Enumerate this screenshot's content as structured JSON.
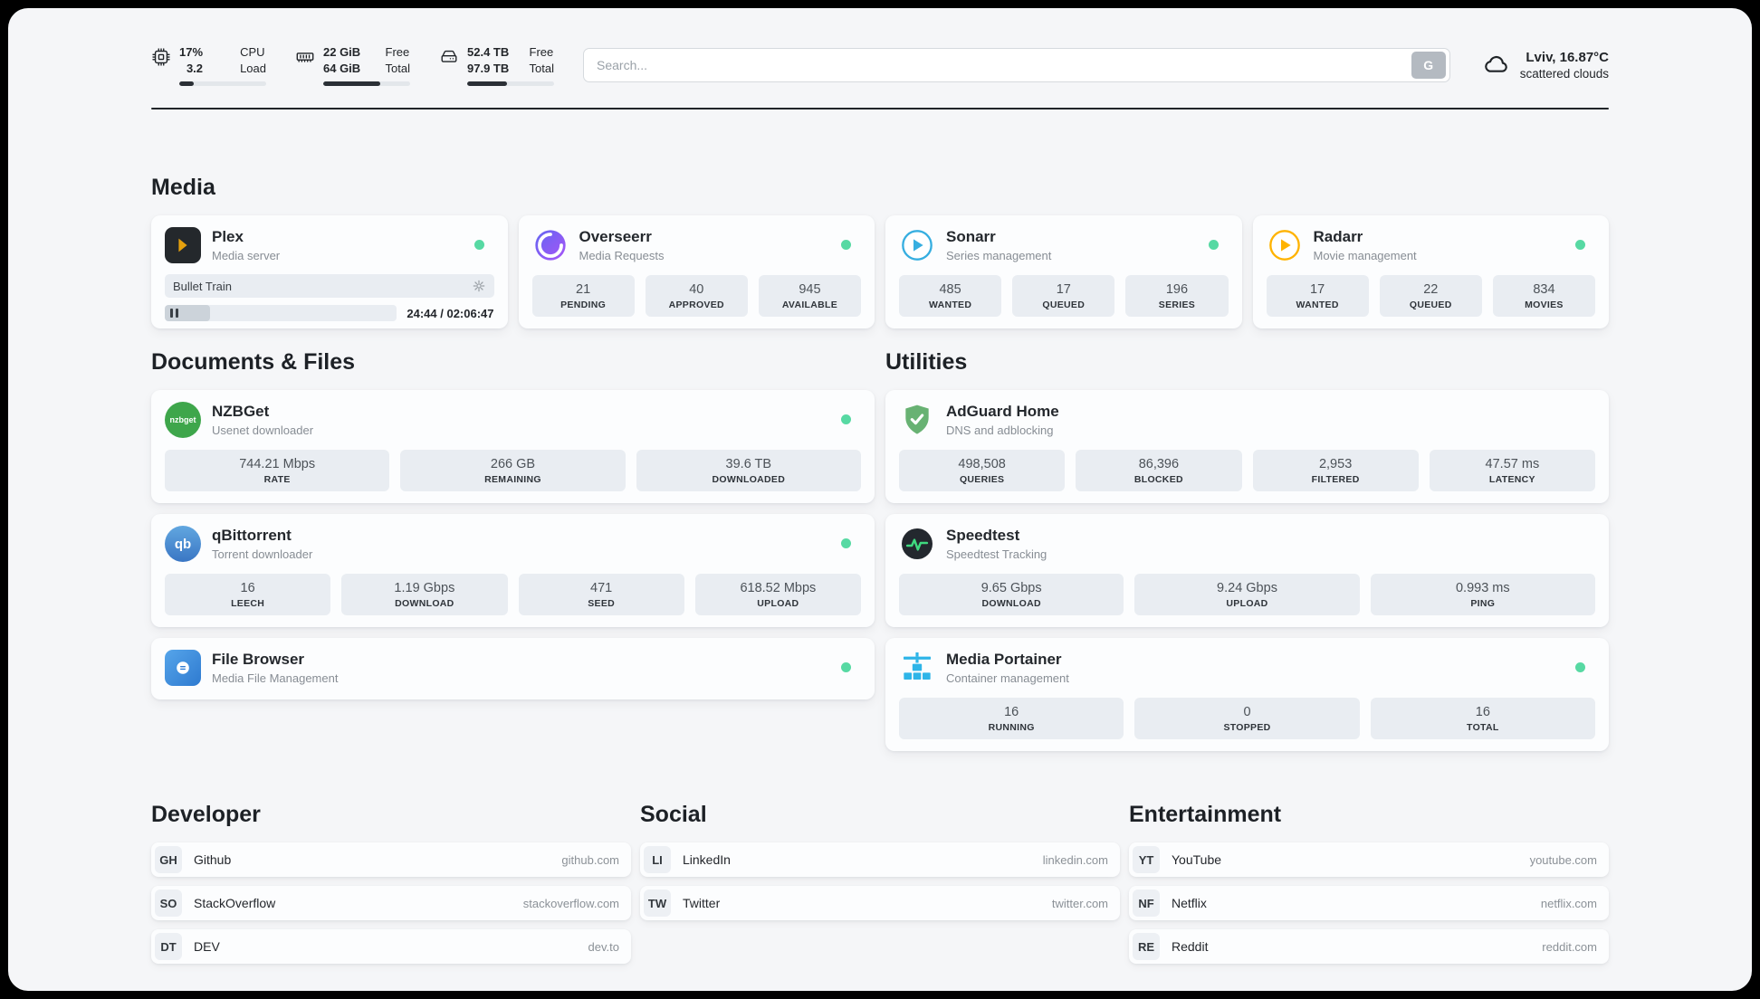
{
  "topbar": {
    "cpu": {
      "value1": "17%",
      "value2": "3.2",
      "label1": "CPU",
      "label2": "Load",
      "percent": 17
    },
    "ram": {
      "value1": "22 GiB",
      "value2": "64 GiB",
      "label1": "Free",
      "label2": "Total",
      "percent": 66
    },
    "disk": {
      "value1": "52.4 TB",
      "value2": "97.9 TB",
      "label1": "Free",
      "label2": "Total",
      "percent": 46
    },
    "search": {
      "placeholder": "Search...",
      "button_label": "G"
    },
    "weather": {
      "location": "Lviv, 16.87°C",
      "condition": "scattered clouds"
    }
  },
  "media": {
    "title": "Media",
    "plex": {
      "name": "Plex",
      "subtitle": "Media server",
      "now_playing": "Bullet Train",
      "time": "24:44 / 02:06:47",
      "progress_percent": 19.5
    },
    "overseerr": {
      "name": "Overseerr",
      "subtitle": "Media Requests",
      "stats": [
        {
          "value": "21",
          "label": "PENDING"
        },
        {
          "value": "40",
          "label": "APPROVED"
        },
        {
          "value": "945",
          "label": "AVAILABLE"
        }
      ]
    },
    "sonarr": {
      "name": "Sonarr",
      "subtitle": "Series management",
      "stats": [
        {
          "value": "485",
          "label": "WANTED"
        },
        {
          "value": "17",
          "label": "QUEUED"
        },
        {
          "value": "196",
          "label": "SERIES"
        }
      ]
    },
    "radarr": {
      "name": "Radarr",
      "subtitle": "Movie management",
      "stats": [
        {
          "value": "17",
          "label": "WANTED"
        },
        {
          "value": "22",
          "label": "QUEUED"
        },
        {
          "value": "834",
          "label": "MOVIES"
        }
      ]
    }
  },
  "documents": {
    "title": "Documents & Files",
    "nzbget": {
      "name": "NZBGet",
      "subtitle": "Usenet downloader",
      "icon_text": "nzbget",
      "stats": [
        {
          "value": "744.21 Mbps",
          "label": "RATE"
        },
        {
          "value": "266 GB",
          "label": "REMAINING"
        },
        {
          "value": "39.6 TB",
          "label": "DOWNLOADED"
        }
      ]
    },
    "qbittorrent": {
      "name": "qBittorrent",
      "subtitle": "Torrent downloader",
      "icon_text": "qb",
      "stats": [
        {
          "value": "16",
          "label": "LEECH"
        },
        {
          "value": "1.19 Gbps",
          "label": "DOWNLOAD"
        },
        {
          "value": "471",
          "label": "SEED"
        },
        {
          "value": "618.52 Mbps",
          "label": "UPLOAD"
        }
      ]
    },
    "filebrowser": {
      "name": "File Browser",
      "subtitle": "Media File Management"
    }
  },
  "utilities": {
    "title": "Utilities",
    "adguard": {
      "name": "AdGuard Home",
      "subtitle": "DNS and adblocking",
      "stats": [
        {
          "value": "498,508",
          "label": "QUERIES"
        },
        {
          "value": "86,396",
          "label": "BLOCKED"
        },
        {
          "value": "2,953",
          "label": "FILTERED"
        },
        {
          "value": "47.57 ms",
          "label": "LATENCY"
        }
      ]
    },
    "speedtest": {
      "name": "Speedtest",
      "subtitle": "Speedtest Tracking",
      "stats": [
        {
          "value": "9.65 Gbps",
          "label": "DOWNLOAD"
        },
        {
          "value": "9.24 Gbps",
          "label": "UPLOAD"
        },
        {
          "value": "0.993 ms",
          "label": "PING"
        }
      ]
    },
    "portainer": {
      "name": "Media Portainer",
      "subtitle": "Container management",
      "stats": [
        {
          "value": "16",
          "label": "RUNNING"
        },
        {
          "value": "0",
          "label": "STOPPED"
        },
        {
          "value": "16",
          "label": "TOTAL"
        }
      ]
    }
  },
  "bookmarks": {
    "developer": {
      "title": "Developer",
      "items": [
        {
          "abbr": "GH",
          "name": "Github",
          "url": "github.com"
        },
        {
          "abbr": "SO",
          "name": "StackOverflow",
          "url": "stackoverflow.com"
        },
        {
          "abbr": "DT",
          "name": "DEV",
          "url": "dev.to"
        }
      ]
    },
    "social": {
      "title": "Social",
      "items": [
        {
          "abbr": "LI",
          "name": "LinkedIn",
          "url": "linkedin.com"
        },
        {
          "abbr": "TW",
          "name": "Twitter",
          "url": "twitter.com"
        }
      ]
    },
    "entertainment": {
      "title": "Entertainment",
      "items": [
        {
          "abbr": "YT",
          "name": "YouTube",
          "url": "youtube.com"
        },
        {
          "abbr": "NF",
          "name": "Netflix",
          "url": "netflix.com"
        },
        {
          "abbr": "RE",
          "name": "Reddit",
          "url": "reddit.com"
        }
      ]
    }
  },
  "colors": {
    "status_online": "#57d9a3",
    "accent_dark": "#212529",
    "stat_box": "#e9edf2"
  }
}
